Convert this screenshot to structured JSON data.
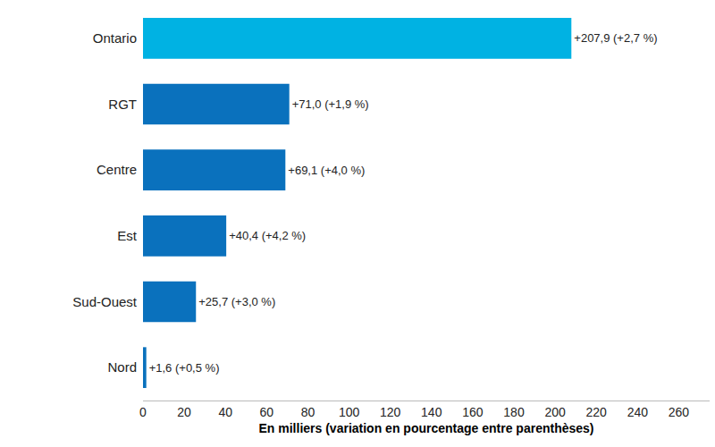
{
  "chart_data": {
    "type": "bar",
    "orientation": "horizontal",
    "categories": [
      "Ontario",
      "RGT",
      "Centre",
      "Est",
      "Sud-Ouest",
      "Nord"
    ],
    "values": [
      207.9,
      71.0,
      69.1,
      40.4,
      25.7,
      1.6
    ],
    "value_labels": [
      "+207,9 (+2,7 %)",
      "+71,0 (+1,9 %)",
      "+69,1 (+4,0 %)",
      "+40,4 (+4,2 %)",
      "+25,7 (+3,0 %)",
      "+1,6 (+0,5 %)"
    ],
    "colors": [
      "#00b2e3",
      "#0a71bd",
      "#0a71bd",
      "#0a71bd",
      "#0a71bd",
      "#0a71bd"
    ],
    "data_labels": true,
    "x_label": "En milliers (variation en pourcentage entre parenthèses)",
    "xlim": [
      0,
      275
    ],
    "xticks": [
      0,
      20,
      40,
      60,
      80,
      100,
      120,
      140,
      160,
      180,
      200,
      220,
      240,
      260
    ],
    "grid": false
  }
}
